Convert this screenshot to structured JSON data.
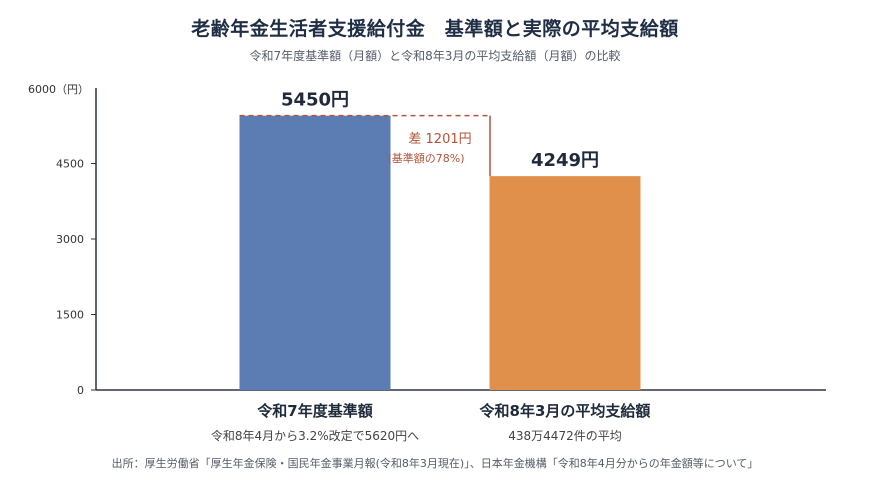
{
  "title": "老齢年金生活者支援給付金　基準額と実際の平均支給額",
  "subtitle": "令和7年度基準額（月額）と令和8年3月の平均支給額（月額）の比較",
  "source": "出所：厚生労働省「厚生年金保険・国民年金事業月報(令和8年3月現在)」、日本年金機構「令和8年4月分からの年金額等について」",
  "chart_data": {
    "type": "bar",
    "ylabel": "6000（円）",
    "ylim": [
      0,
      6000
    ],
    "yticks": [
      0,
      1500,
      3000,
      4500
    ],
    "grid": false,
    "categories": [
      "令和7年度基準額",
      "令和8年3月の平均支給額"
    ],
    "category_notes": [
      "令和8年4月から3.2%改定で5620円へ",
      "438万4472件の平均"
    ],
    "values": [
      5450,
      4249
    ],
    "value_labels": [
      "5450円",
      "4249円"
    ],
    "colors": [
      "#5b7db4",
      "#e0904a"
    ],
    "annotation": {
      "text": "差 1201円",
      "subtext": "(基準額の78%)",
      "color": "#b0543a"
    }
  }
}
